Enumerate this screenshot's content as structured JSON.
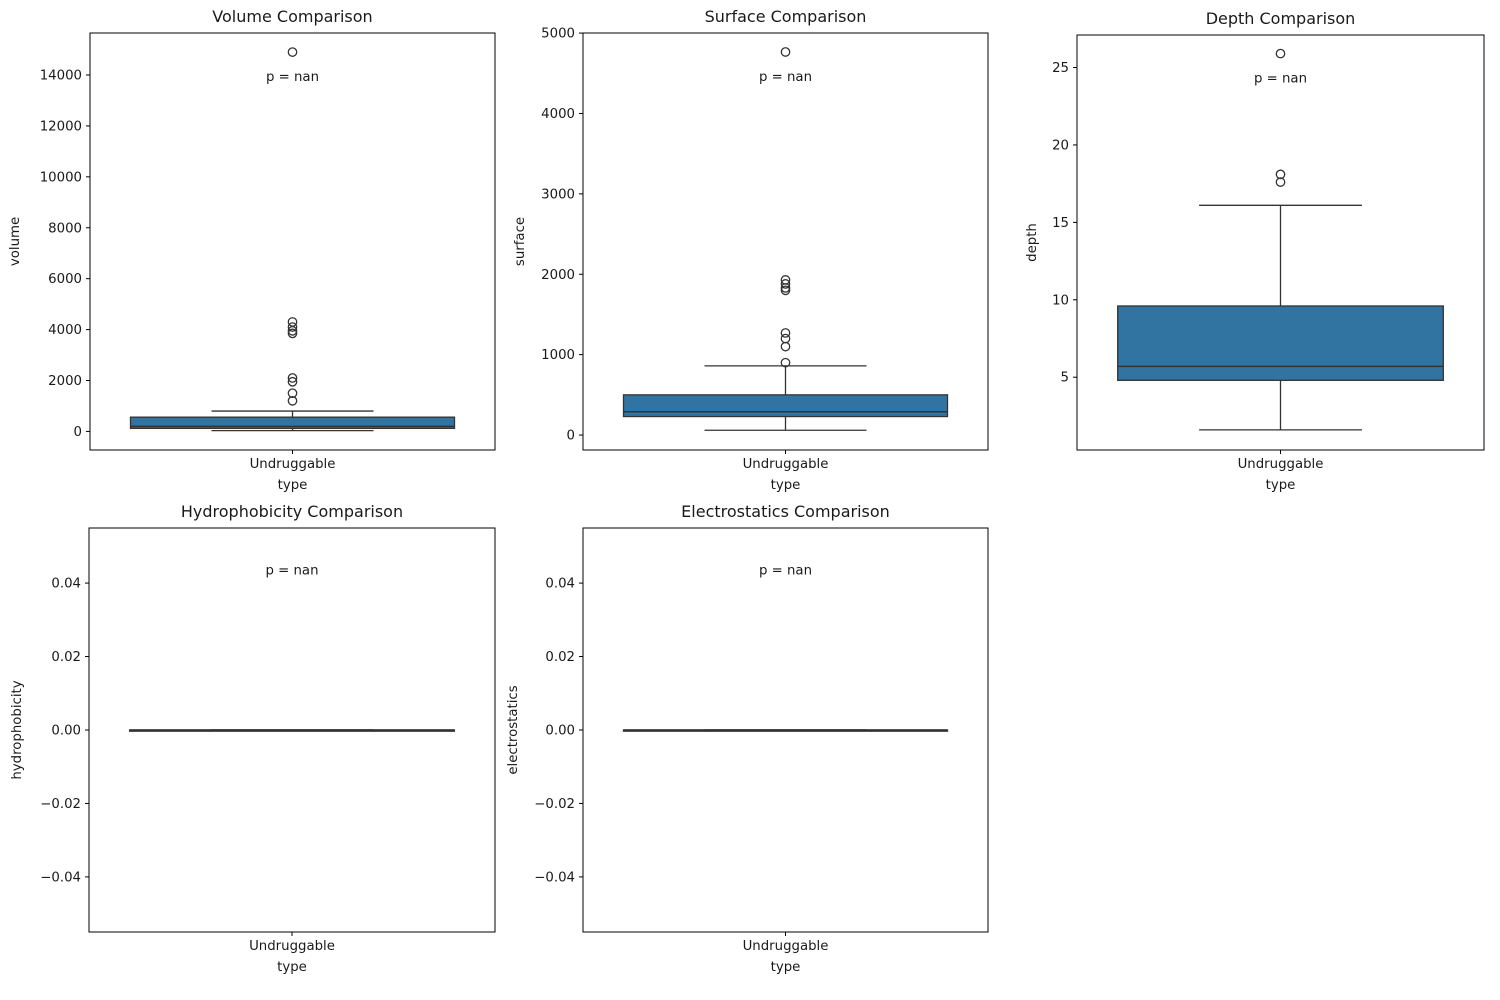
{
  "figure": {
    "background": "#ffffff",
    "grid": {
      "rows": 2,
      "cols": 3,
      "populated_cells": 5
    },
    "box_fill_color": "#3274A1",
    "box_line_color": "#333333",
    "spine_color": "#000000",
    "text_color": "#1a1a1a",
    "legend": "none",
    "gridlines": "off"
  },
  "chart_data": [
    {
      "type": "box",
      "title": "Volume Comparison",
      "xlabel": "type",
      "ylabel": "volume",
      "categories": [
        "Undruggable"
      ],
      "annotation": "p = nan",
      "ylim": [
        -730,
        15650
      ],
      "yticks": [
        0,
        2000,
        4000,
        6000,
        8000,
        10000,
        12000,
        14000
      ],
      "ytick_labels": [
        "0",
        "2000",
        "4000",
        "6000",
        "8000",
        "10000",
        "12000",
        "14000"
      ],
      "series": [
        {
          "name": "Undruggable",
          "whisker_low": 30,
          "q1": 120,
          "median": 200,
          "q3": 560,
          "whisker_high": 800,
          "outliers": [
            1200,
            1500,
            1950,
            2100,
            3850,
            3950,
            4100,
            4300,
            14900
          ]
        }
      ]
    },
    {
      "type": "box",
      "title": "Surface Comparison",
      "xlabel": "type",
      "ylabel": "surface",
      "categories": [
        "Undruggable"
      ],
      "annotation": "p = nan",
      "ylim": [
        -186,
        5001
      ],
      "yticks": [
        0,
        1000,
        2000,
        3000,
        4000,
        5000
      ],
      "ytick_labels": [
        "0",
        "1000",
        "2000",
        "3000",
        "4000",
        "5000"
      ],
      "series": [
        {
          "name": "Undruggable",
          "whisker_low": 60,
          "q1": 230,
          "median": 290,
          "q3": 500,
          "whisker_high": 860,
          "outliers": [
            900,
            1100,
            1200,
            1270,
            1800,
            1830,
            1880,
            1930,
            4765
          ]
        }
      ]
    },
    {
      "type": "box",
      "title": "Depth Comparison",
      "xlabel": "type",
      "ylabel": "depth",
      "categories": [
        "Undruggable"
      ],
      "annotation": "p = nan",
      "ylim": [
        0.3,
        27.1
      ],
      "yticks": [
        5,
        10,
        15,
        20,
        25
      ],
      "ytick_labels": [
        "5",
        "10",
        "15",
        "20",
        "25"
      ],
      "series": [
        {
          "name": "Undruggable",
          "whisker_low": 1.6,
          "q1": 4.8,
          "median": 5.7,
          "q3": 9.6,
          "whisker_high": 16.1,
          "outliers": [
            17.6,
            18.1,
            25.9
          ]
        }
      ]
    },
    {
      "type": "box",
      "title": "Hydrophobicity Comparison",
      "xlabel": "type",
      "ylabel": "hydrophobicity",
      "categories": [
        "Undruggable"
      ],
      "annotation": "p = nan",
      "ylim": [
        -0.055,
        0.055
      ],
      "yticks": [
        -0.04,
        -0.02,
        0,
        0.02,
        0.04
      ],
      "ytick_labels": [
        "−0.04",
        "−0.02",
        "0.00",
        "0.02",
        "0.04"
      ],
      "series": [
        {
          "name": "Undruggable",
          "whisker_low": 0,
          "q1": 0,
          "median": 0,
          "q3": 0,
          "whisker_high": 0,
          "outliers": []
        }
      ]
    },
    {
      "type": "box",
      "title": "Electrostatics Comparison",
      "xlabel": "type",
      "ylabel": "electrostatics",
      "categories": [
        "Undruggable"
      ],
      "annotation": "p = nan",
      "ylim": [
        -0.055,
        0.055
      ],
      "yticks": [
        -0.04,
        -0.02,
        0,
        0.02,
        0.04
      ],
      "ytick_labels": [
        "−0.04",
        "−0.02",
        "0.00",
        "0.02",
        "0.04"
      ],
      "series": [
        {
          "name": "Undruggable",
          "whisker_low": 0,
          "q1": 0,
          "median": 0,
          "q3": 0,
          "whisker_high": 0,
          "outliers": []
        }
      ]
    }
  ]
}
